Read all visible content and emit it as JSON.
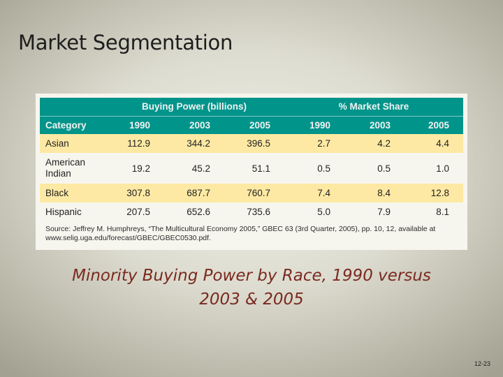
{
  "slide": {
    "title": "Market Segmentation",
    "caption_line1": "Minority Buying Power by Race, 1990 versus",
    "caption_line2": "2003 & 2005",
    "page_number": "12-23"
  },
  "table": {
    "group_headers": [
      "Buying Power (billions)",
      "% Market Share"
    ],
    "columns": [
      "Category",
      "1990",
      "2003",
      "2005",
      "1990",
      "2003",
      "2005"
    ],
    "rows": [
      {
        "category": "Asian",
        "values": [
          "112.9",
          "344.2",
          "396.5",
          "2.7",
          "4.2",
          "4.4"
        ]
      },
      {
        "category": "American Indian",
        "values": [
          "19.2",
          "45.2",
          "51.1",
          "0.5",
          "0.5",
          "1.0"
        ]
      },
      {
        "category": "Black",
        "values": [
          "307.8",
          "687.7",
          "760.7",
          "7.4",
          "8.4",
          "12.8"
        ]
      },
      {
        "category": "Hispanic",
        "values": [
          "207.5",
          "652.6",
          "735.6",
          "5.0",
          "7.9",
          "8.1"
        ]
      }
    ],
    "source_line1": "Source: Jeffrey M. Humphreys, “The Multicultural Economy 2005,” GBEC 63 (3rd Quarter, 2005), pp. 10, 12, available at",
    "source_line2": "www.selig.uga.edu/forecast/GBEC/GBEC0530.pdf.",
    "colors": {
      "header": "#00948a",
      "band": "#fde9a3"
    }
  }
}
